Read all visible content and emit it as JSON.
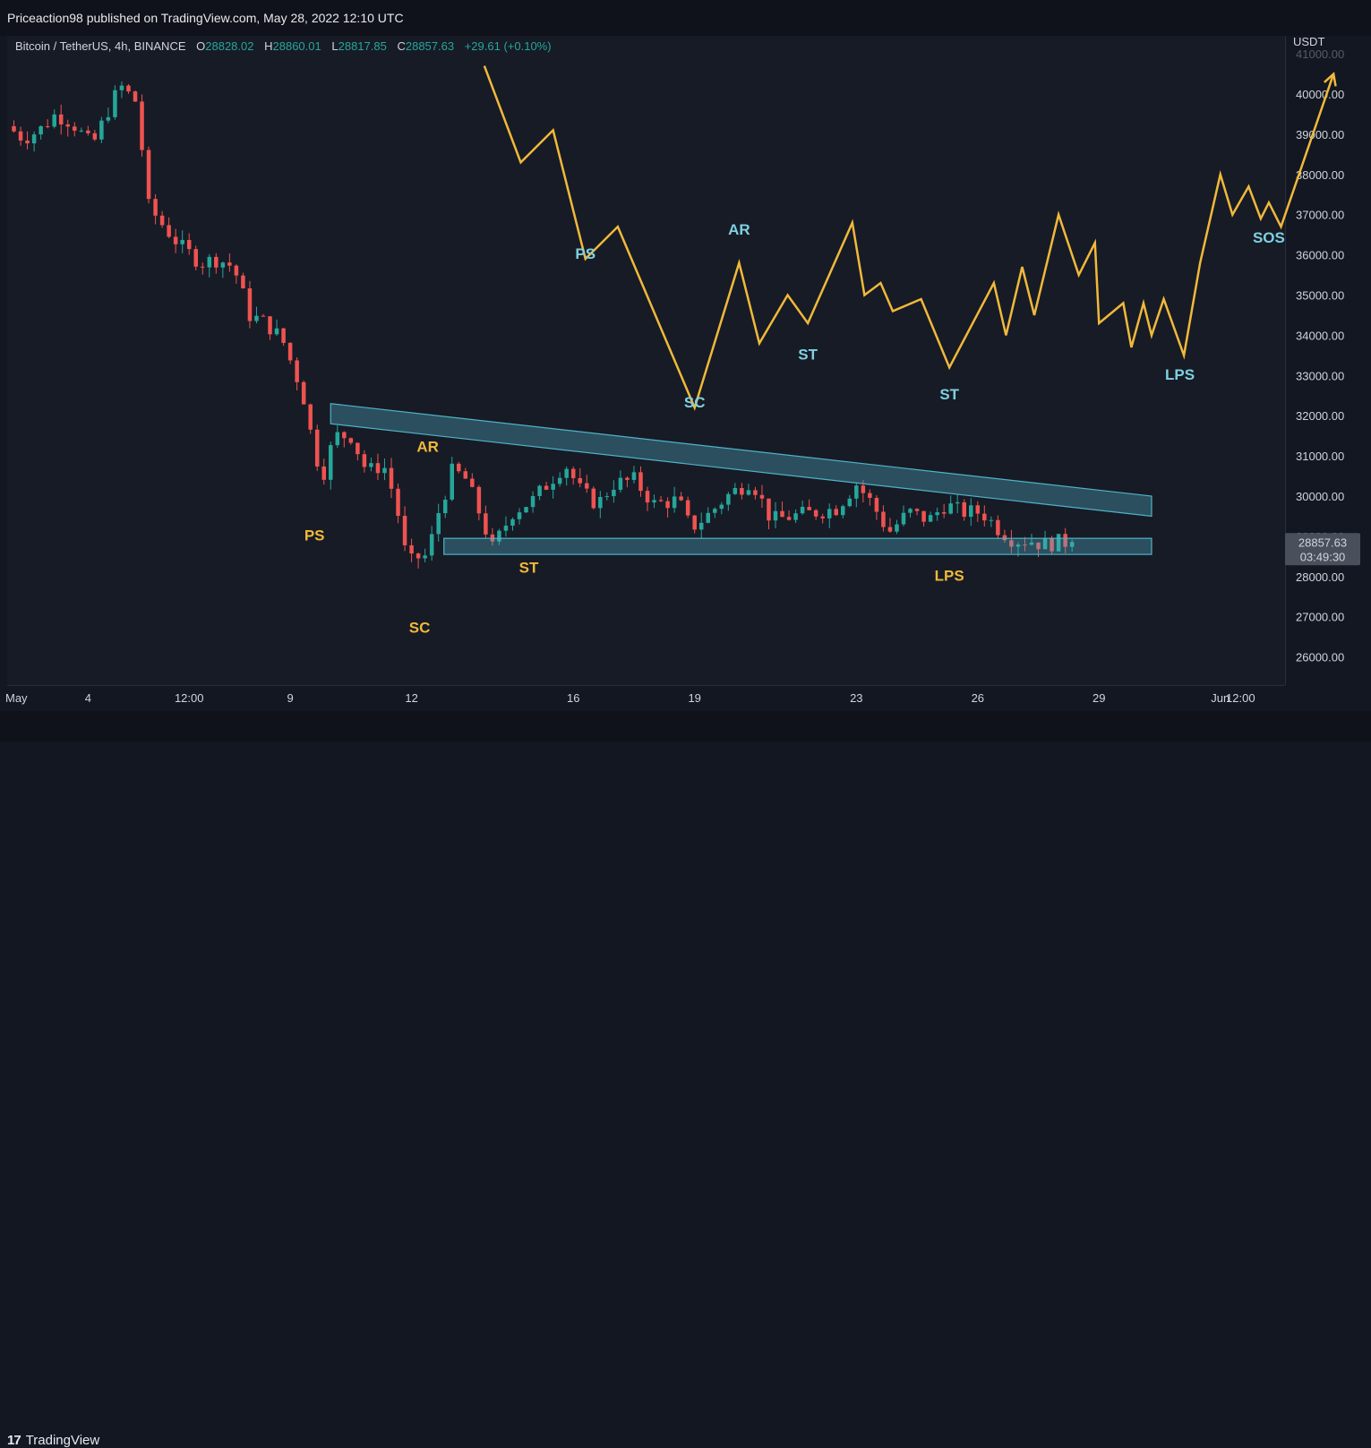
{
  "published": "Priceaction98 published on TradingView.com, May 28, 2022 12:10 UTC",
  "legend": {
    "symbol": "Bitcoin / TetherUS, 4h, BINANCE",
    "o_label": "O",
    "open": "28828.02",
    "h_label": "H",
    "high": "28860.01",
    "l_label": "L",
    "low": "28817.85",
    "c_label": "C",
    "close": "28857.63",
    "change": "+29.61 (+0.10%)"
  },
  "price_axis": {
    "currency": "USDT",
    "last_price": "28857.63",
    "countdown": "03:49:30"
  },
  "footer": {
    "logo_mark": "17",
    "logo_text": "TradingView"
  },
  "colors": {
    "up": "#26a69a",
    "down": "#ef5350",
    "projection": "#f0b93a",
    "wyckoff_upper": "#f0b93a",
    "wyckoff_lower": "#7fd1e0",
    "channel": "#4fb3c8",
    "background": "#171b26"
  },
  "chart_data": {
    "type": "candlestick",
    "symbol": "Bitcoin / TetherUS",
    "interval": "4h",
    "ylim": [
      25800,
      41300
    ],
    "y_ticks": [
      26000,
      27000,
      28000,
      29000,
      30000,
      31000,
      32000,
      33000,
      34000,
      35000,
      36000,
      37000,
      38000,
      39000,
      40000
    ],
    "y_tick_labels": [
      "26000.00",
      "27000.00",
      "28000.00",
      "29000.00",
      "30000.00",
      "31000.00",
      "32000.00",
      "33000.00",
      "34000.00",
      "35000.00",
      "36000.00",
      "37000.00",
      "38000.00",
      "39000.00",
      "40000.00"
    ],
    "x_range": [
      2.0,
      33.6
    ],
    "x_ticks": [
      {
        "x": 2.0,
        "label": "May"
      },
      {
        "x": 4.0,
        "label": "4"
      },
      {
        "x": 6.5,
        "label": "12:00"
      },
      {
        "x": 9.0,
        "label": "9"
      },
      {
        "x": 12.0,
        "label": "12"
      },
      {
        "x": 16.0,
        "label": "16"
      },
      {
        "x": 19.0,
        "label": "19"
      },
      {
        "x": 23.0,
        "label": "23"
      },
      {
        "x": 26.0,
        "label": "26"
      },
      {
        "x": 29.0,
        "label": "29"
      },
      {
        "x": 32.0,
        "label": "Jun"
      },
      {
        "x": 32.5,
        "label": "12:00"
      }
    ],
    "price_anchors": [
      [
        2.0,
        39200
      ],
      [
        2.4,
        38900
      ],
      [
        2.8,
        39100
      ],
      [
        3.2,
        39500
      ],
      [
        3.6,
        39300
      ],
      [
        4.1,
        38700
      ],
      [
        4.5,
        39600
      ],
      [
        4.8,
        40200
      ],
      [
        5.2,
        39800
      ],
      [
        5.5,
        37200
      ],
      [
        5.8,
        36800
      ],
      [
        6.3,
        36200
      ],
      [
        6.8,
        35800
      ],
      [
        7.2,
        35900
      ],
      [
        7.6,
        35700
      ],
      [
        8.0,
        34500
      ],
      [
        8.4,
        34300
      ],
      [
        8.8,
        33900
      ],
      [
        9.3,
        32600
      ],
      [
        9.6,
        31100
      ],
      [
        9.8,
        30500
      ],
      [
        10.1,
        31500
      ],
      [
        10.5,
        31500
      ],
      [
        10.9,
        30600
      ],
      [
        11.3,
        30800
      ],
      [
        11.6,
        29900
      ],
      [
        11.9,
        28300
      ],
      [
        12.2,
        28500
      ],
      [
        12.4,
        28500
      ],
      [
        12.6,
        29400
      ],
      [
        13.0,
        30600
      ],
      [
        13.3,
        30500
      ],
      [
        13.6,
        29800
      ],
      [
        14.0,
        28700
      ],
      [
        14.5,
        29600
      ],
      [
        15.0,
        29900
      ],
      [
        15.8,
        30800
      ],
      [
        16.2,
        30100
      ],
      [
        16.6,
        29800
      ],
      [
        17.0,
        30300
      ],
      [
        17.5,
        30400
      ],
      [
        18.0,
        29800
      ],
      [
        18.6,
        29900
      ],
      [
        18.9,
        29200
      ],
      [
        19.3,
        29500
      ],
      [
        19.8,
        30000
      ],
      [
        20.4,
        30400
      ],
      [
        20.9,
        29400
      ],
      [
        21.4,
        29500
      ],
      [
        22.0,
        29600
      ],
      [
        22.5,
        29700
      ],
      [
        23.0,
        30300
      ],
      [
        23.4,
        29800
      ],
      [
        23.8,
        29100
      ],
      [
        24.3,
        29600
      ],
      [
        24.8,
        29400
      ],
      [
        25.2,
        29800
      ],
      [
        25.6,
        29600
      ],
      [
        26.1,
        29600
      ],
      [
        26.5,
        29200
      ],
      [
        26.9,
        28900
      ],
      [
        27.3,
        28900
      ],
      [
        27.6,
        28800
      ],
      [
        28.0,
        28850
      ],
      [
        28.4,
        28857.63
      ]
    ],
    "projection_path": [
      [
        13.8,
        40700
      ],
      [
        14.7,
        38300
      ],
      [
        15.5,
        39100
      ],
      [
        16.3,
        35900
      ],
      [
        17.1,
        36700
      ],
      [
        19.0,
        32200
      ],
      [
        20.1,
        35800
      ],
      [
        20.6,
        33800
      ],
      [
        21.3,
        35000
      ],
      [
        21.8,
        34300
      ],
      [
        22.9,
        36800
      ],
      [
        23.2,
        35000
      ],
      [
        23.6,
        35300
      ],
      [
        23.9,
        34600
      ],
      [
        24.6,
        34900
      ],
      [
        25.3,
        33200
      ],
      [
        26.4,
        35300
      ],
      [
        26.7,
        34000
      ],
      [
        27.1,
        35700
      ],
      [
        27.4,
        34500
      ],
      [
        28.0,
        37000
      ],
      [
        28.5,
        35500
      ],
      [
        28.9,
        36300
      ],
      [
        29.0,
        34300
      ],
      [
        29.6,
        34800
      ],
      [
        29.8,
        33700
      ],
      [
        30.1,
        34800
      ],
      [
        30.3,
        34000
      ],
      [
        30.6,
        34900
      ],
      [
        31.1,
        33500
      ],
      [
        31.5,
        35800
      ],
      [
        32.0,
        38000
      ],
      [
        32.3,
        37000
      ],
      [
        32.7,
        37700
      ],
      [
        33.0,
        36900
      ],
      [
        33.2,
        37300
      ],
      [
        33.5,
        36700
      ],
      [
        34.8,
        40500
      ]
    ],
    "projection_labels": [
      {
        "x": 16.3,
        "y": 35900,
        "label": "PS"
      },
      {
        "x": 20.1,
        "y": 36500,
        "label": "AR"
      },
      {
        "x": 19.0,
        "y": 32200,
        "label": "SC"
      },
      {
        "x": 21.8,
        "y": 33400,
        "label": "ST"
      },
      {
        "x": 25.3,
        "y": 32400,
        "label": "ST"
      },
      {
        "x": 31.0,
        "y": 32900,
        "label": "LPS"
      },
      {
        "x": 33.2,
        "y": 36300,
        "label": "SOS"
      }
    ],
    "chart_labels": [
      {
        "x": 9.6,
        "y": 28900,
        "label": "PS"
      },
      {
        "x": 12.4,
        "y": 31100,
        "label": "AR"
      },
      {
        "x": 12.2,
        "y": 26600,
        "label": "SC"
      },
      {
        "x": 14.9,
        "y": 28100,
        "label": "ST"
      },
      {
        "x": 25.3,
        "y": 27900,
        "label": "LPS"
      }
    ],
    "channel_upper": {
      "x1": 10.0,
      "y1_top": 32300,
      "y1_bottom": 31800,
      "x2": 30.3,
      "y2_top": 30000,
      "y2_bottom": 29500
    },
    "channel_lower": {
      "x1": 12.8,
      "x2": 30.3,
      "y_top": 28950,
      "y_bottom": 28550
    }
  }
}
